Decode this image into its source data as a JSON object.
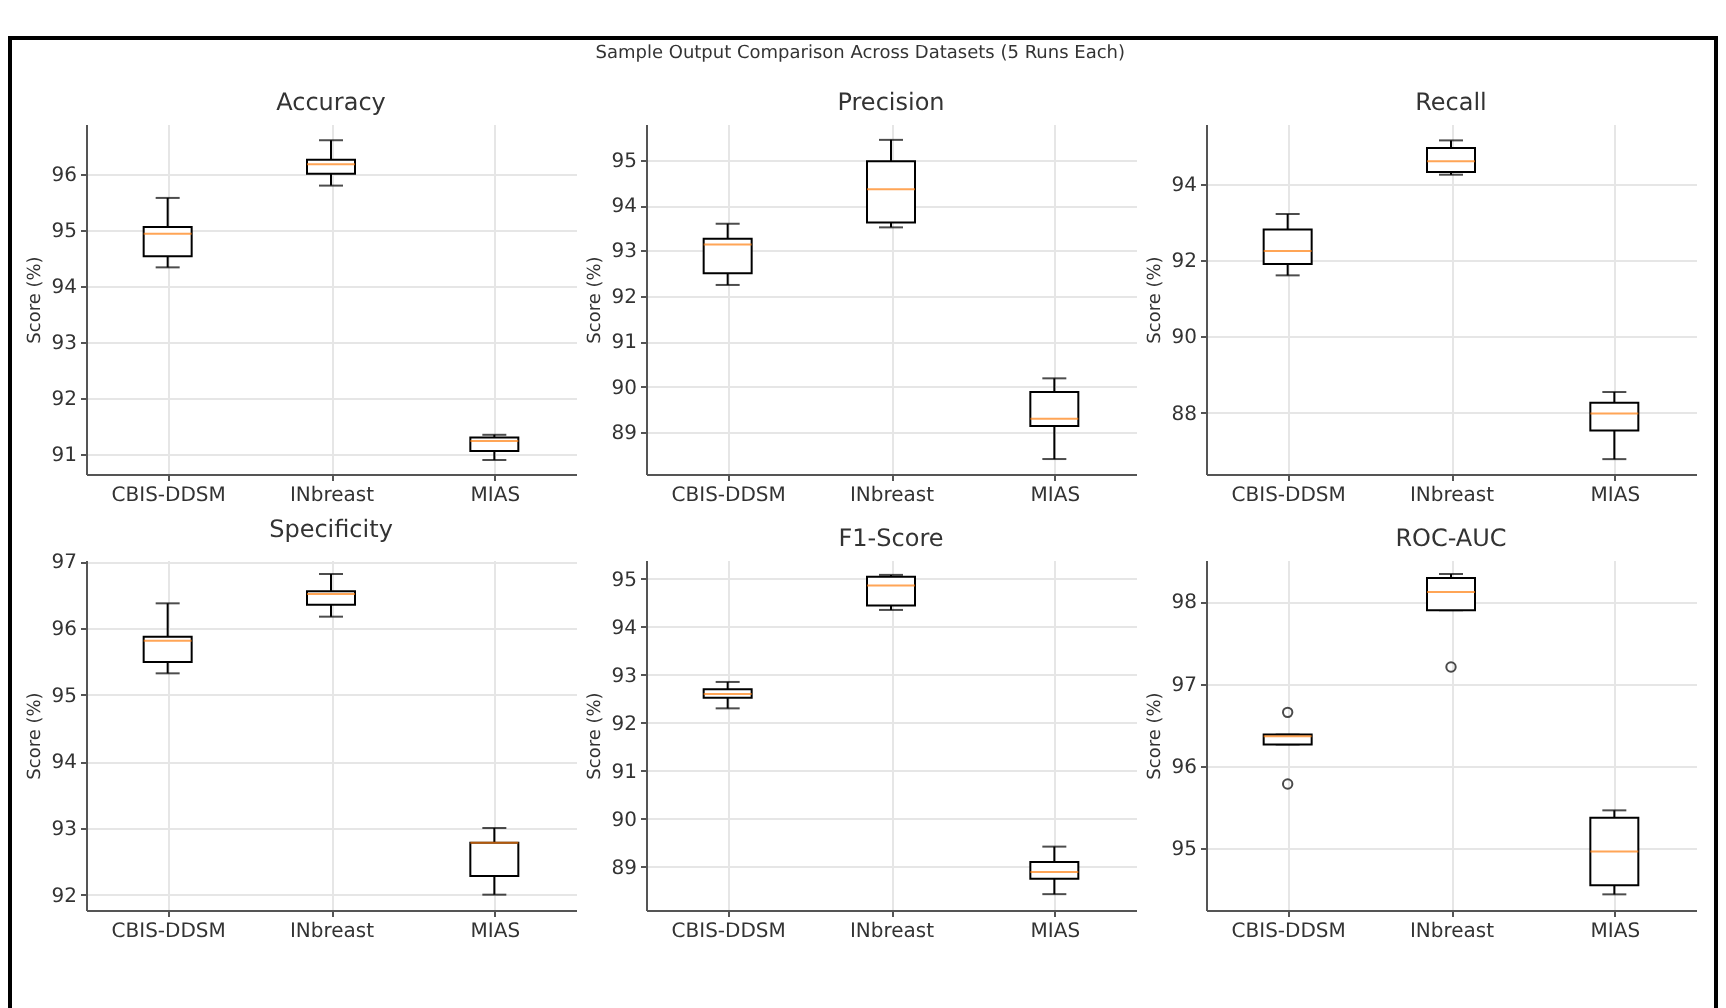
{
  "chart_data": [
    {
      "type": "box",
      "title": "Accuracy",
      "ylabel": "Score (%)",
      "annotations": [
        "Sample Output Comparison Across Datasets (5 Runs Each)"
      ],
      "categories": [
        "CBIS-DDSM",
        "INbreast",
        "MIAS"
      ],
      "grid": true,
      "ylim": [
        90.65,
        96.9
      ],
      "yticks": [
        91,
        92,
        93,
        94,
        95,
        96
      ],
      "boxes": [
        {
          "low": 94.34,
          "q1": 94.54,
          "median": 94.94,
          "q3": 95.06,
          "high": 95.58
        },
        {
          "low": 95.8,
          "q1": 96.01,
          "median": 96.18,
          "q3": 96.26,
          "high": 96.61
        },
        {
          "low": 90.9,
          "q1": 91.06,
          "median": 91.24,
          "q3": 91.3,
          "high": 91.35
        }
      ]
    },
    {
      "type": "box",
      "title": "Precision",
      "ylabel": "Score (%)",
      "categories": [
        "CBIS-DDSM",
        "INbreast",
        "MIAS"
      ],
      "grid": true,
      "ylim": [
        88.07,
        95.79
      ],
      "yticks": [
        89,
        90,
        91,
        92,
        93,
        94,
        95
      ],
      "boxes": [
        {
          "low": 92.24,
          "q1": 92.5,
          "median": 93.13,
          "q3": 93.26,
          "high": 93.59
        },
        {
          "low": 93.51,
          "q1": 93.62,
          "median": 94.35,
          "q3": 94.97,
          "high": 95.44
        },
        {
          "low": 88.4,
          "q1": 89.13,
          "median": 89.29,
          "q3": 89.88,
          "high": 90.18
        }
      ]
    },
    {
      "type": "box",
      "title": "Recall",
      "ylabel": "Score (%)",
      "categories": [
        "CBIS-DDSM",
        "INbreast",
        "MIAS"
      ],
      "grid": true,
      "ylim": [
        86.39,
        95.57
      ],
      "yticks": [
        88,
        90,
        92,
        94
      ],
      "boxes": [
        {
          "low": 91.6,
          "q1": 91.9,
          "median": 92.24,
          "q3": 92.8,
          "high": 93.21
        },
        {
          "low": 94.24,
          "q1": 94.31,
          "median": 94.59,
          "q3": 94.94,
          "high": 95.14
        },
        {
          "low": 86.78,
          "q1": 87.53,
          "median": 87.98,
          "q3": 88.26,
          "high": 88.54
        }
      ]
    },
    {
      "type": "box",
      "title": "Specificity",
      "ylabel": "Score (%)",
      "categories": [
        "CBIS-DDSM",
        "INbreast",
        "MIAS"
      ],
      "grid": true,
      "ylim": [
        91.77,
        97.02
      ],
      "yticks": [
        92,
        93,
        94,
        95,
        96,
        97
      ],
      "boxes": [
        {
          "low": 95.32,
          "q1": 95.49,
          "median": 95.81,
          "q3": 95.87,
          "high": 96.37
        },
        {
          "low": 96.17,
          "q1": 96.35,
          "median": 96.51,
          "q3": 96.55,
          "high": 96.81
        },
        {
          "low": 92.0,
          "q1": 92.28,
          "median": 92.78,
          "q3": 92.78,
          "high": 93.0
        }
      ]
    },
    {
      "type": "box",
      "title": "F1-Score",
      "ylabel": "Score (%)",
      "categories": [
        "CBIS-DDSM",
        "INbreast",
        "MIAS"
      ],
      "grid": true,
      "ylim": [
        88.1,
        95.39
      ],
      "yticks": [
        89,
        90,
        91,
        92,
        93,
        94,
        95
      ],
      "boxes": [
        {
          "low": 92.3,
          "q1": 92.52,
          "median": 92.6,
          "q3": 92.7,
          "high": 92.85
        },
        {
          "low": 94.35,
          "q1": 94.44,
          "median": 94.86,
          "q3": 95.04,
          "high": 95.08
        },
        {
          "low": 88.43,
          "q1": 88.75,
          "median": 88.89,
          "q3": 89.1,
          "high": 89.42
        }
      ]
    },
    {
      "type": "box",
      "title": "ROC-AUC",
      "ylabel": "Score (%)",
      "categories": [
        "CBIS-DDSM",
        "INbreast",
        "MIAS"
      ],
      "grid": true,
      "ylim": [
        94.25,
        98.5
      ],
      "yticks": [
        95,
        96,
        97,
        98
      ],
      "boxes": [
        {
          "low": 96.26,
          "q1": 96.26,
          "median": 96.36,
          "q3": 96.38,
          "high": 96.38,
          "outliers": [
            96.65,
            95.78
          ]
        },
        {
          "low": 97.89,
          "q1": 97.89,
          "median": 98.11,
          "q3": 98.28,
          "high": 98.33,
          "outliers": [
            97.2
          ]
        },
        {
          "low": 94.44,
          "q1": 94.55,
          "median": 94.96,
          "q3": 95.37,
          "high": 95.46
        }
      ]
    }
  ]
}
